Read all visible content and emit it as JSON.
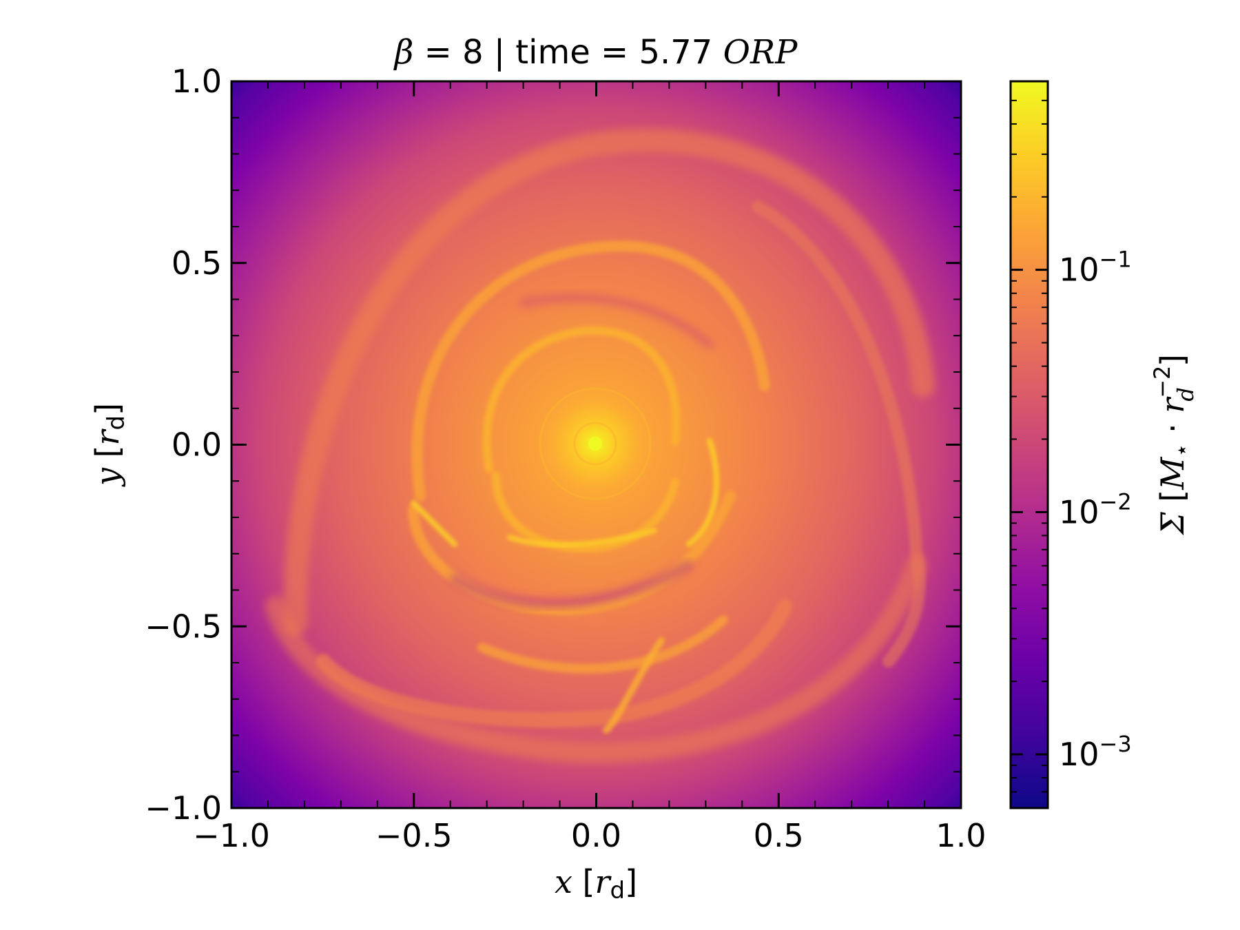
{
  "chart_data": {
    "type": "heatmap",
    "title": {
      "beta_symbol": "β",
      "beta_text": " = 8 | time = 5.77 ",
      "time_unit": "ORP"
    },
    "xlabel": {
      "var": "x",
      "unit_base": "r",
      "unit_sub": "d",
      "open": " [",
      "close": "]"
    },
    "ylabel": {
      "var": "y",
      "unit_base": "r",
      "unit_sub": "d",
      "open": " [",
      "close": "]"
    },
    "xlim": [
      -1.0,
      1.0
    ],
    "ylim": [
      -1.0,
      1.0
    ],
    "xticks": [
      -1.0,
      -0.5,
      0.0,
      0.5,
      1.0
    ],
    "yticks": [
      -1.0,
      -0.5,
      0.0,
      0.5,
      1.0
    ],
    "xtick_labels": [
      "−1.0",
      "−0.5",
      "0.0",
      "0.5",
      "1.0"
    ],
    "ytick_labels": [
      "−1.0",
      "−0.5",
      "0.0",
      "0.5",
      "1.0"
    ],
    "colormap": "plasma",
    "colorbar": {
      "scale": "log",
      "range": [
        0.0006,
        0.6
      ],
      "ticks": [
        0.001,
        0.01,
        0.1
      ],
      "tick_base": "10",
      "tick_exponents": [
        "−3",
        "−2",
        "−1"
      ],
      "label": {
        "symbol": "Σ",
        "open": " [",
        "mass": "M",
        "mass_sub": "⋆",
        "dot": " · ",
        "radius": "r",
        "radius_sub": "d",
        "radius_sup": "−2",
        "close": "]"
      }
    },
    "field_description_values": {
      "center_peak": 0.5,
      "inner_disk": 0.15,
      "spiral_arms": 0.07,
      "interarm": 0.02,
      "outer_edge": 0.003,
      "corners": 0.0007
    }
  }
}
